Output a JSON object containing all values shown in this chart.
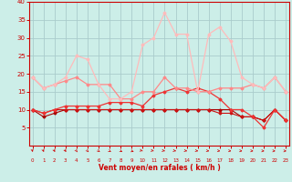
{
  "xlabel": "Vent moyen/en rafales ( km/h )",
  "background_color": "#cceee8",
  "grid_color": "#aacccc",
  "x": [
    0,
    1,
    2,
    3,
    4,
    5,
    6,
    7,
    8,
    9,
    10,
    11,
    12,
    13,
    14,
    15,
    16,
    17,
    18,
    19,
    20,
    21,
    22,
    23
  ],
  "series": [
    {
      "y": [
        10,
        8,
        9,
        10,
        10,
        10,
        10,
        10,
        10,
        10,
        10,
        10,
        10,
        10,
        10,
        10,
        10,
        10,
        10,
        8,
        8,
        7,
        10,
        7
      ],
      "color": "#aa0000",
      "lw": 0.8,
      "marker": "D",
      "ms": 1.5
    },
    {
      "y": [
        10,
        9,
        10,
        10,
        10,
        10,
        10,
        10,
        10,
        10,
        10,
        10,
        10,
        10,
        10,
        10,
        10,
        9,
        9,
        8,
        8,
        7,
        10,
        7
      ],
      "color": "#cc1111",
      "lw": 0.8,
      "marker": "D",
      "ms": 1.5
    },
    {
      "y": [
        10,
        9,
        10,
        11,
        11,
        11,
        11,
        12,
        12,
        12,
        11,
        14,
        15,
        16,
        15,
        16,
        15,
        13,
        10,
        10,
        8,
        5,
        10,
        7
      ],
      "color": "#ee3333",
      "lw": 0.9,
      "marker": "D",
      "ms": 1.5
    },
    {
      "y": [
        19,
        16,
        17,
        18,
        19,
        17,
        17,
        17,
        13,
        13,
        15,
        15,
        19,
        16,
        16,
        15,
        15,
        16,
        16,
        16,
        17,
        16,
        19,
        15
      ],
      "color": "#ff8888",
      "lw": 0.9,
      "marker": "D",
      "ms": 1.5
    },
    {
      "y": [
        19,
        16,
        17,
        19,
        25,
        24,
        17,
        13,
        13,
        15,
        28,
        30,
        37,
        31,
        31,
        15,
        31,
        33,
        29,
        19,
        17,
        16,
        19,
        15
      ],
      "color": "#ffbbbb",
      "lw": 0.9,
      "marker": "D",
      "ms": 1.5
    }
  ],
  "ylim": [
    0,
    40
  ],
  "yticks": [
    5,
    10,
    15,
    20,
    25,
    30,
    35,
    40
  ],
  "xlim": [
    -0.3,
    23.3
  ],
  "tick_color": "#cc0000",
  "label_color": "#cc0000",
  "axis_color": "#cc0000",
  "wind_angles": [
    85,
    82,
    80,
    78,
    75,
    72,
    68,
    62,
    55,
    48,
    42,
    38,
    35,
    33,
    30,
    28,
    25,
    22,
    20,
    18,
    16,
    14,
    12,
    10
  ]
}
